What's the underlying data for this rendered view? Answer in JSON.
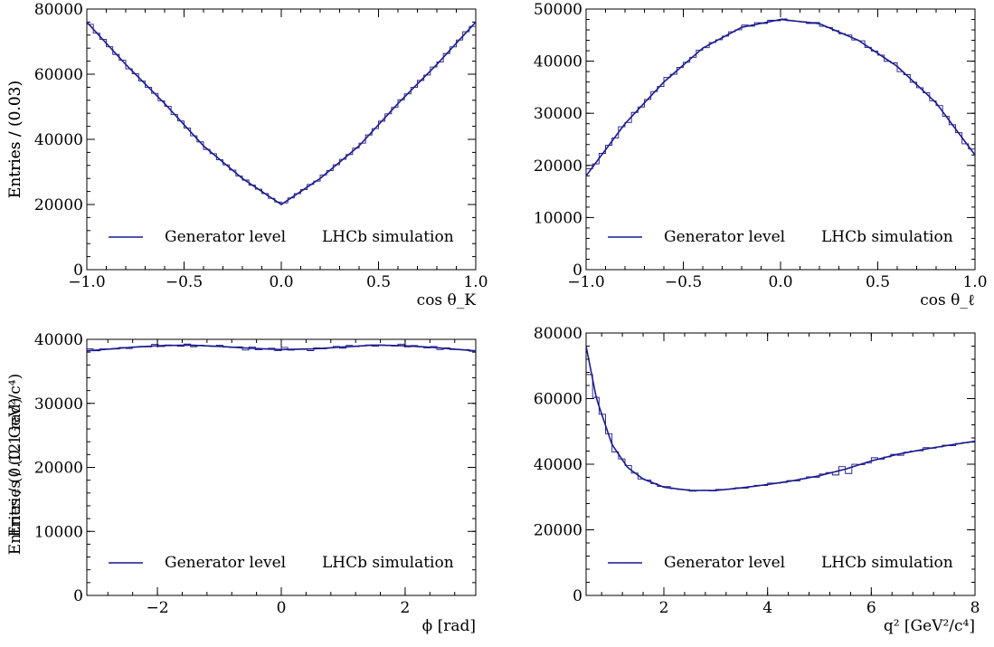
{
  "chart_data": [
    {
      "id": "cosk",
      "type": "line",
      "xlabel": "cos θ_K",
      "ylabel": "Entries / (0.03)",
      "xlim": [
        -1.0,
        1.0
      ],
      "ylim": [
        0,
        80000
      ],
      "xticks": [
        -1.0,
        -0.5,
        0.0,
        0.5,
        1.0
      ],
      "xtick_labels": [
        "−1.0",
        "−0.5",
        "0.0",
        "0.5",
        "1.0"
      ],
      "yticks": [
        0,
        20000,
        40000,
        60000,
        80000
      ],
      "ytick_labels": [
        "0",
        "20000",
        "40000",
        "60000",
        "80000"
      ],
      "x": [
        -1.0,
        -0.8,
        -0.6,
        -0.4,
        -0.2,
        0.0,
        0.2,
        0.4,
        0.6,
        0.8,
        1.0
      ],
      "curve": [
        76000,
        63000,
        51000,
        38000,
        28000,
        20000,
        28000,
        38000,
        51000,
        63000,
        76000
      ],
      "hist_deviation": [
        500,
        -400,
        300,
        -300,
        200,
        -200,
        300,
        -300,
        200,
        -400,
        500
      ],
      "legend": {
        "label": "Generator level",
        "annotation": "LHCb simulation"
      }
    },
    {
      "id": "cosl",
      "type": "line",
      "xlabel": "cos θ_ℓ",
      "ylabel": "Entries / (0.03)",
      "xlim": [
        -1.0,
        1.0
      ],
      "ylim": [
        0,
        50000
      ],
      "xticks": [
        -1.0,
        -0.5,
        0.0,
        0.5,
        1.0
      ],
      "xtick_labels": [
        "−1.0",
        "−0.5",
        "0.0",
        "0.5",
        "1.0"
      ],
      "yticks": [
        0,
        10000,
        20000,
        30000,
        40000,
        50000
      ],
      "ytick_labels": [
        "0",
        "10000",
        "20000",
        "30000",
        "40000",
        "50000"
      ],
      "x": [
        -1.0,
        -0.8,
        -0.6,
        -0.4,
        -0.2,
        0.0,
        0.2,
        0.4,
        0.6,
        0.8,
        1.0
      ],
      "curve": [
        18000,
        28000,
        36000,
        42500,
        46500,
        48000,
        47200,
        44000,
        39000,
        32000,
        22000
      ],
      "hist_deviation": [
        600,
        -500,
        400,
        -300,
        300,
        200,
        -300,
        400,
        -500,
        400,
        -600
      ],
      "legend": {
        "label": "Generator level",
        "annotation": "LHCb simulation"
      }
    },
    {
      "id": "phi",
      "type": "line",
      "xlabel": "ϕ [rad]",
      "ylabel": "Entries / (0.1 rad)",
      "xlim": [
        -3.14,
        3.14
      ],
      "ylim": [
        0,
        40000
      ],
      "xticks": [
        -2,
        0,
        2
      ],
      "xtick_labels": [
        "−2",
        "0",
        "2"
      ],
      "yticks": [
        0,
        10000,
        20000,
        30000,
        40000
      ],
      "ytick_labels": [
        "0",
        "10000",
        "20000",
        "30000",
        "40000"
      ],
      "x": [
        -3.14,
        -2.5,
        -2.0,
        -1.5,
        -1.0,
        -0.5,
        0.0,
        0.5,
        1.0,
        1.5,
        2.0,
        2.5,
        3.14
      ],
      "curve": [
        38200,
        38700,
        39000,
        39100,
        38900,
        38600,
        38400,
        38500,
        38800,
        39100,
        39000,
        38700,
        38200
      ],
      "hist_deviation": [
        300,
        -200,
        300,
        -300,
        200,
        -400,
        400,
        -300,
        300,
        -200,
        300,
        -300,
        200
      ],
      "legend": {
        "label": "Generator level",
        "annotation": "LHCb simulation"
      }
    },
    {
      "id": "q2",
      "type": "line",
      "xlabel": "q² [GeV²/c⁴]",
      "ylabel": "Entries / (0.12 GeV²/c⁴)",
      "xlim": [
        0.5,
        8.0
      ],
      "ylim": [
        0,
        80000
      ],
      "xticks": [
        2,
        4,
        6,
        8
      ],
      "xtick_labels": [
        "2",
        "4",
        "6",
        "8"
      ],
      "yticks": [
        0,
        20000,
        40000,
        60000,
        80000
      ],
      "ytick_labels": [
        "0",
        "20000",
        "40000",
        "60000",
        "80000"
      ],
      "x": [
        0.5,
        0.7,
        1.0,
        1.3,
        1.6,
        2.0,
        2.5,
        3.0,
        3.5,
        4.0,
        4.5,
        5.0,
        5.5,
        6.0,
        6.5,
        7.0,
        7.5,
        8.0
      ],
      "curve": [
        76000,
        60000,
        46000,
        39000,
        35500,
        33000,
        32000,
        32000,
        32800,
        33800,
        35000,
        36500,
        38500,
        41000,
        43000,
        44500,
        45800,
        47000
      ],
      "hist_deviation": [
        -6000,
        1500,
        -1200,
        800,
        -600,
        400,
        -300,
        300,
        -300,
        400,
        -400,
        600,
        -2000,
        900,
        -600,
        500,
        -400,
        300
      ],
      "legend": {
        "label": "Generator level",
        "annotation": "LHCb simulation"
      }
    }
  ],
  "colors": {
    "curve": "#1a1a8c",
    "histogram": "#1a1a8c",
    "frame": "#000000"
  }
}
